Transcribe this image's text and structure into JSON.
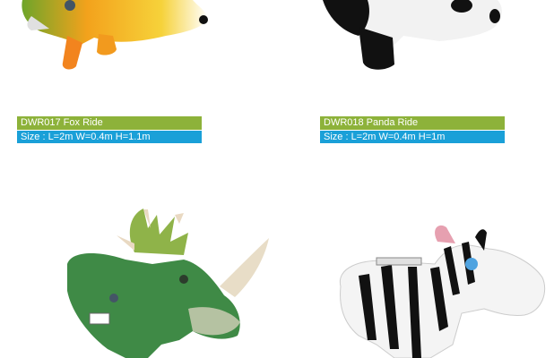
{
  "colors": {
    "name_bar": "#8db23a",
    "size_bar": "#1aa0d8",
    "background": "#ffffff"
  },
  "products": [
    {
      "image_icon": "fox-ride-icon",
      "name": "DWR017 Fox Ride",
      "size": "Size : L=2m W=0.4m H=1.1m"
    },
    {
      "image_icon": "panda-ride-icon",
      "name": "DWR018 Panda Ride",
      "size": "Size : L=2m W=0.4m H=1m"
    },
    {
      "image_icon": "dinosaur-ride-icon"
    },
    {
      "image_icon": "zebra-ride-icon"
    }
  ]
}
